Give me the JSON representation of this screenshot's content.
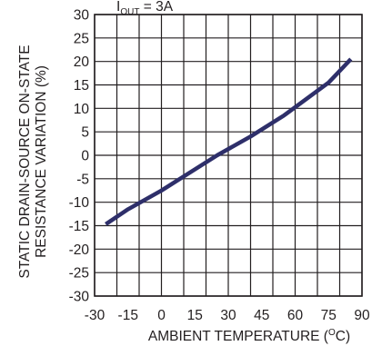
{
  "chart_data": {
    "type": "line",
    "title_fragment": {
      "main": "I",
      "sub": "OUT",
      "rest": " = 3A"
    },
    "xlabel": {
      "text": "AMBIENT TEMPERATURE (",
      "sup": "O",
      "unit": "C)"
    },
    "ylabel_lines": [
      "STATIC DRAIN-SOURCE ON-STATE",
      "RESISTANCE VARIATION (%)"
    ],
    "xlim": [
      -30,
      90
    ],
    "ylim": [
      -30,
      30
    ],
    "x_ticks": [
      -30,
      -15,
      0,
      15,
      30,
      45,
      60,
      75,
      90
    ],
    "y_ticks": [
      30,
      25,
      20,
      15,
      10,
      5,
      0,
      -5,
      -10,
      -15,
      -20,
      -25,
      -30
    ],
    "x_tick_labels": [
      "-30",
      "-15",
      "0",
      "15",
      "30",
      "45",
      "60",
      "75",
      "90"
    ],
    "y_tick_labels": [
      "30",
      "25",
      "20",
      "15",
      "10",
      "5",
      "0",
      "-5",
      "-10",
      "-15",
      "-20",
      "-25",
      "-30"
    ],
    "grid": true,
    "series": [
      {
        "color": "#2e2f6a",
        "x": [
          -25,
          -15,
          0,
          15,
          25,
          40,
          55,
          75,
          85
        ],
        "y": [
          -14.7,
          -11.5,
          -7.5,
          -3.0,
          0.0,
          4.0,
          8.5,
          15.5,
          20.5
        ]
      }
    ]
  }
}
